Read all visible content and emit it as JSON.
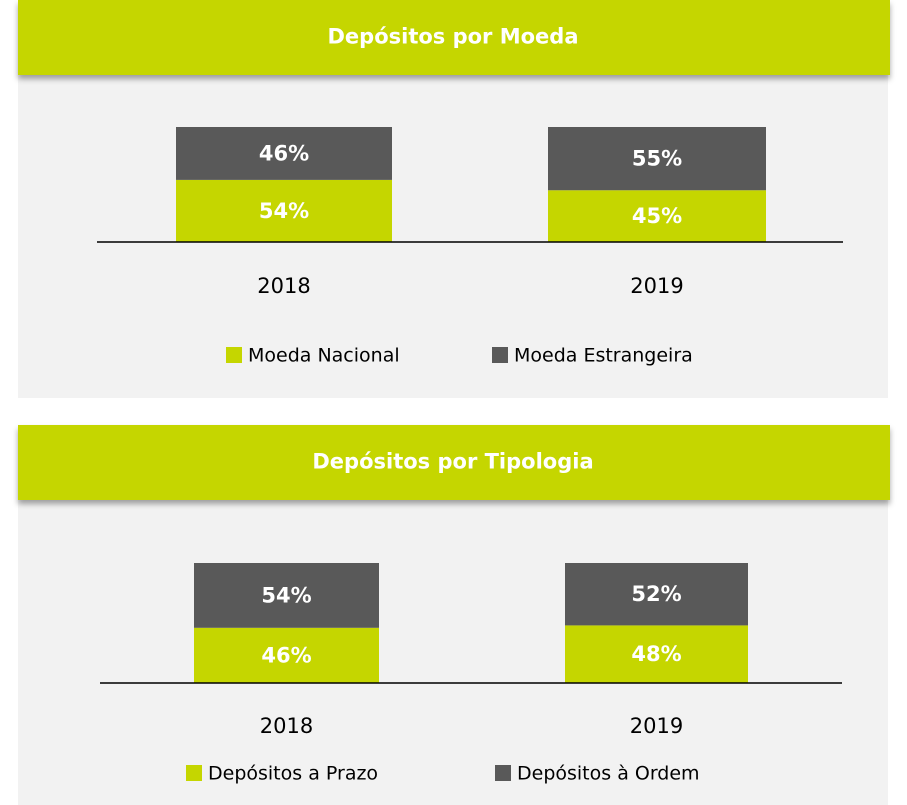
{
  "chart_data": [
    {
      "type": "bar",
      "stacked": true,
      "title": "Depósitos por Moeda",
      "categories": [
        "2018",
        "2019"
      ],
      "ylim": [
        0,
        100
      ],
      "series": [
        {
          "name": "Moeda Nacional",
          "color": "#c5d600",
          "values": [
            54,
            45
          ],
          "value_labels": [
            "54%",
            "45%"
          ]
        },
        {
          "name": "Moeda Estrangeira",
          "color": "#595959",
          "values": [
            46,
            55
          ],
          "value_labels": [
            "46%",
            "55%"
          ]
        }
      ]
    },
    {
      "type": "bar",
      "stacked": true,
      "title": "Depósitos por Tipologia",
      "categories": [
        "2018",
        "2019"
      ],
      "ylim": [
        0,
        100
      ],
      "series": [
        {
          "name": "Depósitos a Prazo",
          "color": "#c5d600",
          "values": [
            46,
            48
          ],
          "value_labels": [
            "46%",
            "48%"
          ]
        },
        {
          "name": "Depósitos à Ordem",
          "color": "#595959",
          "values": [
            54,
            52
          ],
          "value_labels": [
            "54%",
            "52%"
          ]
        }
      ]
    }
  ]
}
